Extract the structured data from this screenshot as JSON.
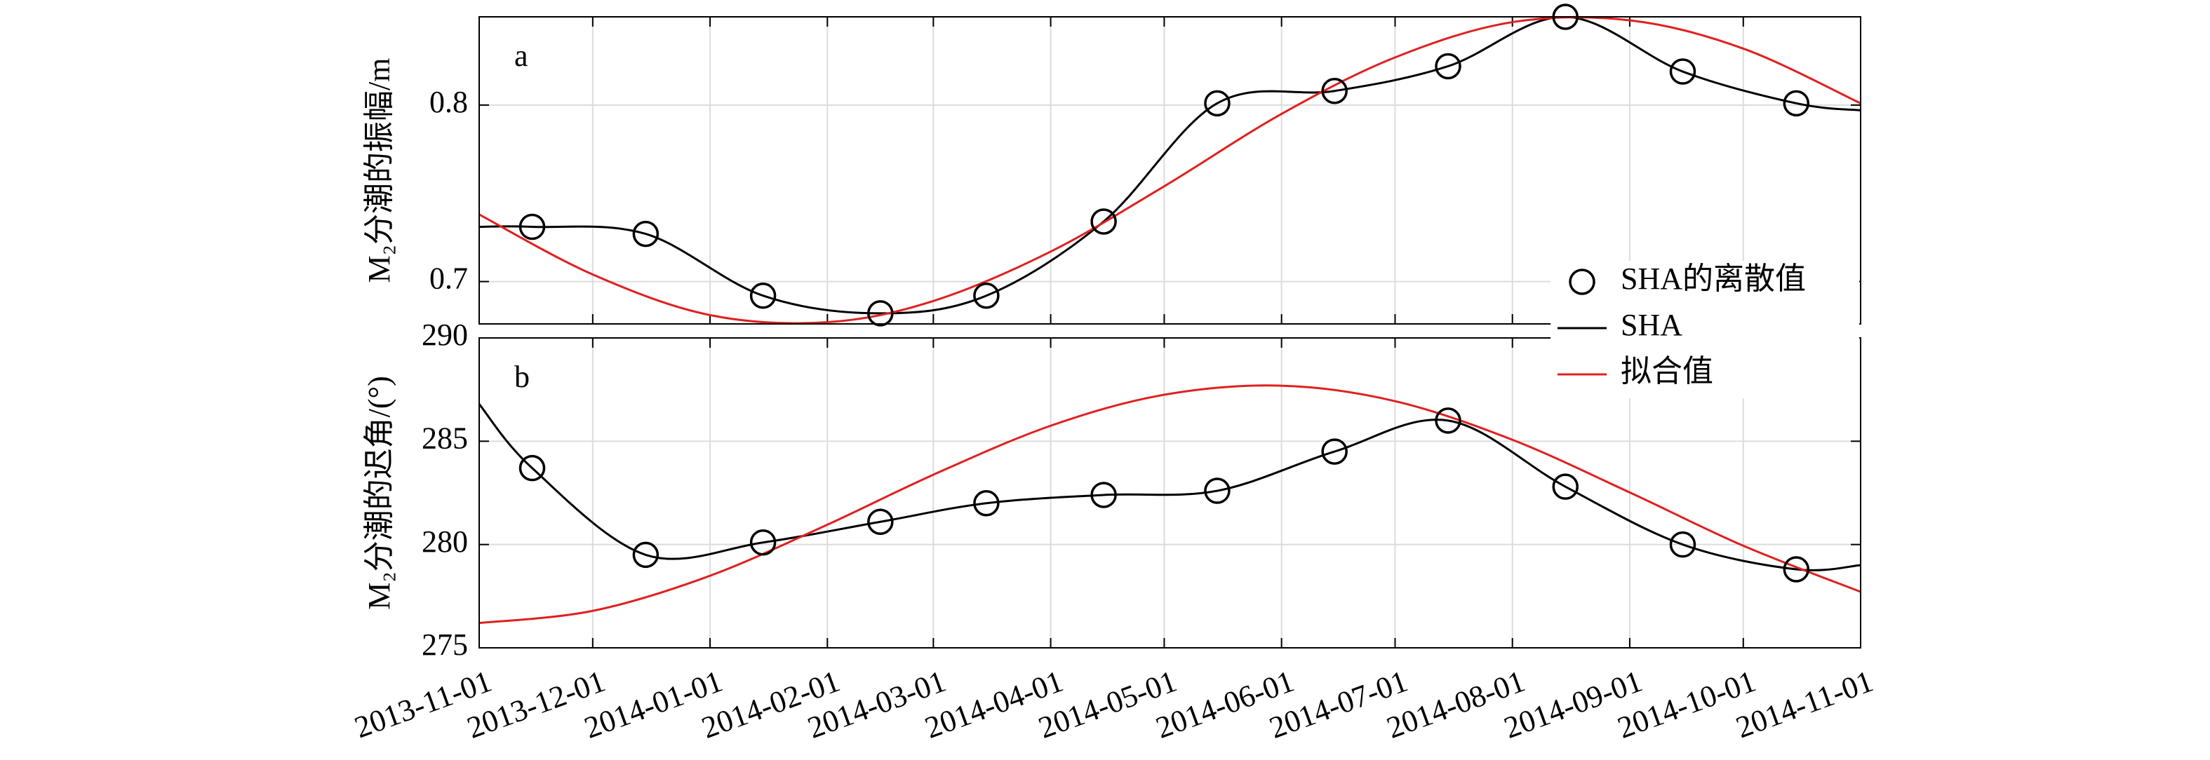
{
  "chart_data": [
    {
      "type": "line",
      "panel_label": "a",
      "y_label": "M₂分潮的振幅/m",
      "xlim": [
        "2013-11-01",
        "2014-11-01"
      ],
      "xticks": [
        "2013-11-01",
        "2013-12-01",
        "2014-01-01",
        "2014-02-01",
        "2014-03-01",
        "2014-04-01",
        "2014-05-01",
        "2014-06-01",
        "2014-07-01",
        "2014-08-01",
        "2014-09-01",
        "2014-10-01",
        "2014-11-01"
      ],
      "ylim": [
        0.676,
        0.85
      ],
      "yticks": [
        0.7,
        0.8
      ],
      "grid": true,
      "series": [
        {
          "name": "SHA的离散值",
          "mode": "markers",
          "color": "#000000",
          "x": [
            "2013-11-15",
            "2013-12-15",
            "2014-01-15",
            "2014-02-15",
            "2014-03-15",
            "2014-04-15",
            "2014-05-15",
            "2014-06-15",
            "2014-07-15",
            "2014-08-15",
            "2014-09-15",
            "2014-10-15"
          ],
          "values": [
            0.731,
            0.727,
            0.692,
            0.682,
            0.692,
            0.734,
            0.801,
            0.808,
            0.822,
            0.85,
            0.819,
            0.801
          ]
        },
        {
          "name": "SHA",
          "mode": "line",
          "color": "#000000",
          "x": [
            "2013-11-01",
            "2013-11-15",
            "2013-12-15",
            "2014-01-15",
            "2014-02-15",
            "2014-03-15",
            "2014-04-15",
            "2014-05-15",
            "2014-06-15",
            "2014-07-15",
            "2014-08-15",
            "2014-09-15",
            "2014-10-15",
            "2014-11-01"
          ],
          "values": [
            0.731,
            0.731,
            0.727,
            0.692,
            0.682,
            0.692,
            0.734,
            0.801,
            0.808,
            0.822,
            0.85,
            0.819,
            0.801,
            0.797
          ]
        },
        {
          "name": "拟合值",
          "mode": "line",
          "color": "#e02020",
          "x": [
            "2013-11-01",
            "2013-12-01",
            "2014-01-01",
            "2014-02-01",
            "2014-03-01",
            "2014-04-01",
            "2014-05-01",
            "2014-06-01",
            "2014-07-01",
            "2014-08-01",
            "2014-09-01",
            "2014-10-01",
            "2014-11-01"
          ],
          "values": [
            0.738,
            0.704,
            0.681,
            0.677,
            0.689,
            0.717,
            0.754,
            0.795,
            0.827,
            0.847,
            0.848,
            0.832,
            0.801
          ]
        }
      ]
    },
    {
      "type": "line",
      "panel_label": "b",
      "y_label": "M₂分潮的迟角/(°)",
      "xlim": [
        "2013-11-01",
        "2014-11-01"
      ],
      "xticks": [
        "2013-11-01",
        "2013-12-01",
        "2014-01-01",
        "2014-02-01",
        "2014-03-01",
        "2014-04-01",
        "2014-05-01",
        "2014-06-01",
        "2014-07-01",
        "2014-08-01",
        "2014-09-01",
        "2014-10-01",
        "2014-11-01"
      ],
      "ylim": [
        275,
        290
      ],
      "yticks": [
        275,
        280,
        285,
        290
      ],
      "grid": true,
      "series": [
        {
          "mode": "markers",
          "color": "#000000",
          "x": [
            "2013-11-15",
            "2013-12-15",
            "2014-01-15",
            "2014-02-15",
            "2014-03-15",
            "2014-04-15",
            "2014-05-15",
            "2014-06-15",
            "2014-07-15",
            "2014-08-15",
            "2014-09-15",
            "2014-10-15"
          ],
          "values": [
            283.7,
            279.5,
            280.1,
            281.1,
            282.0,
            282.4,
            282.6,
            284.5,
            286.0,
            282.8,
            280.0,
            278.8
          ]
        },
        {
          "mode": "line",
          "color": "#000000",
          "x": [
            "2013-11-01",
            "2013-11-15",
            "2013-12-15",
            "2014-01-15",
            "2014-02-15",
            "2014-03-15",
            "2014-04-15",
            "2014-05-15",
            "2014-06-15",
            "2014-07-15",
            "2014-08-15",
            "2014-09-15",
            "2014-10-15",
            "2014-11-01"
          ],
          "values": [
            286.8,
            283.7,
            279.5,
            280.1,
            281.1,
            282.0,
            282.4,
            282.6,
            284.5,
            286.0,
            282.8,
            280.0,
            278.8,
            279.0
          ]
        },
        {
          "mode": "line",
          "color": "#e02020",
          "x": [
            "2013-11-01",
            "2013-12-01",
            "2014-01-01",
            "2014-02-01",
            "2014-03-01",
            "2014-04-01",
            "2014-05-01",
            "2014-06-01",
            "2014-07-01",
            "2014-08-01",
            "2014-09-01",
            "2014-10-01",
            "2014-11-01"
          ],
          "values": [
            276.2,
            276.79,
            278.49,
            280.96,
            283.38,
            285.75,
            287.25,
            287.69,
            286.94,
            285.07,
            282.52,
            279.94,
            277.71
          ]
        }
      ]
    }
  ]
}
